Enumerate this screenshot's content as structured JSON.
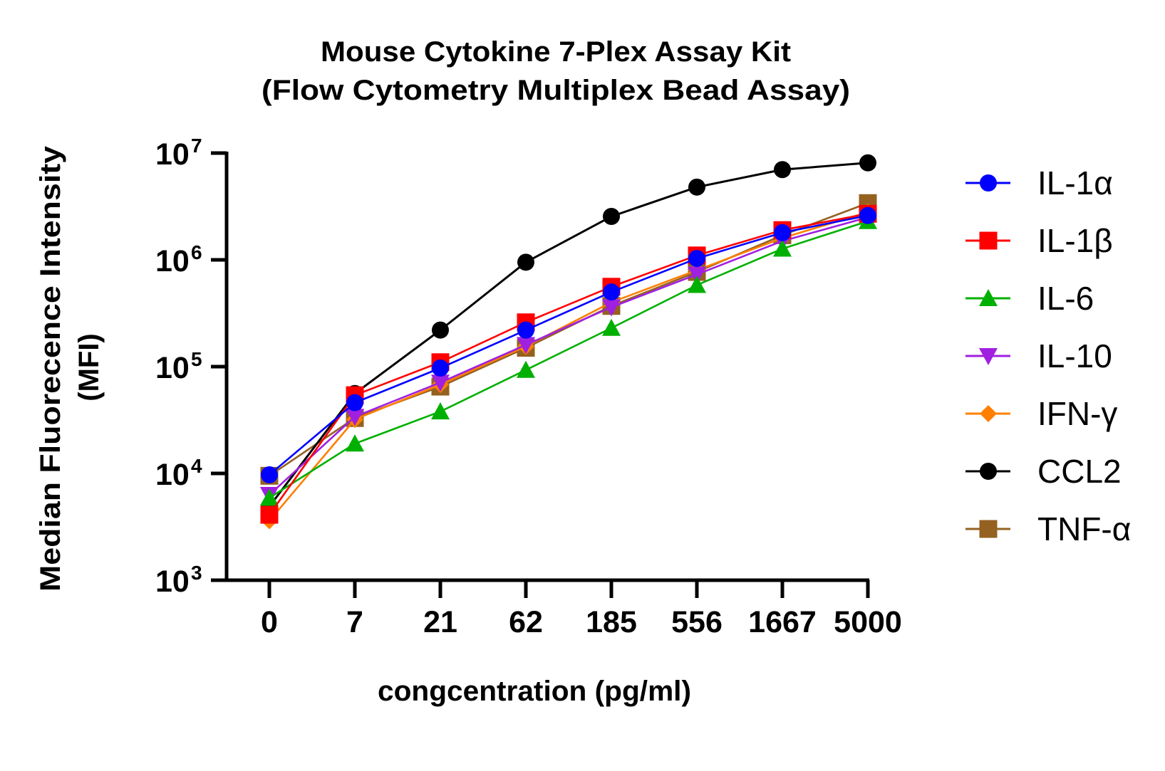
{
  "chart_data": {
    "type": "line",
    "title": [
      "Mouse Cytokine 7-Plex Assay Kit",
      "(Flow Cytometry Multiplex Bead Assay)"
    ],
    "xlabel": "congcentration (pg/ml)",
    "ylabel": [
      "Median Fluorecence Intensity",
      "(MFI)"
    ],
    "yscale": "log",
    "ylim": [
      1000,
      10000000
    ],
    "yticks": [
      {
        "value": 1000,
        "base": "10",
        "exp": "3"
      },
      {
        "value": 10000,
        "base": "10",
        "exp": "4"
      },
      {
        "value": 100000,
        "base": "10",
        "exp": "5"
      },
      {
        "value": 1000000,
        "base": "10",
        "exp": "6"
      },
      {
        "value": 10000000,
        "base": "10",
        "exp": "7"
      }
    ],
    "categories": [
      "0",
      "7",
      "21",
      "62",
      "185",
      "556",
      "1667",
      "5000"
    ],
    "grid": false,
    "legend_position": "right",
    "series": [
      {
        "name": "IL-1α",
        "color": "#0000ff",
        "marker": "circle",
        "values": [
          9700,
          46000,
          97000,
          220000,
          500000,
          1030000,
          1800000,
          2600000
        ]
      },
      {
        "name": "IL-1β",
        "color": "#ff0000",
        "marker": "square",
        "values": [
          4100,
          54000,
          110000,
          260000,
          560000,
          1100000,
          1900000,
          2700000
        ]
      },
      {
        "name": "IL-6",
        "color": "#00b000",
        "marker": "triangle-up",
        "values": [
          5900,
          19000,
          38000,
          93000,
          230000,
          580000,
          1270000,
          2300000
        ]
      },
      {
        "name": "IL-10",
        "color": "#a020e0",
        "marker": "triangle-down",
        "values": [
          6300,
          34000,
          71000,
          160000,
          360000,
          730000,
          1500000,
          2500000
        ]
      },
      {
        "name": "IFN-γ",
        "color": "#ff7f00",
        "marker": "diamond",
        "values": [
          3600,
          32000,
          68000,
          155000,
          400000,
          800000,
          1600000,
          2800000
        ]
      },
      {
        "name": "CCL2",
        "color": "#000000",
        "marker": "circle",
        "values": [
          4900,
          56000,
          220000,
          950000,
          2550000,
          4800000,
          7000000,
          8100000
        ]
      },
      {
        "name": "TNF-α",
        "color": "#946121",
        "marker": "square",
        "values": [
          9500,
          33000,
          65000,
          150000,
          370000,
          770000,
          1700000,
          3400000
        ]
      }
    ]
  }
}
